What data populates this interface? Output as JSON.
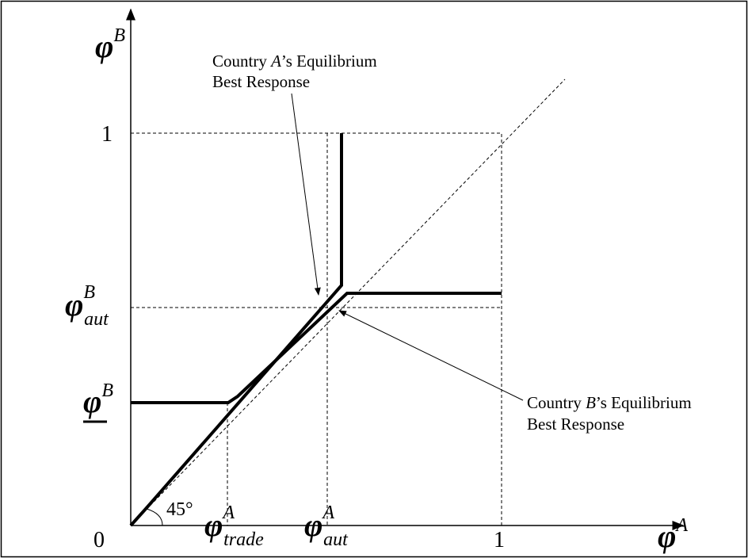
{
  "axes": {
    "y_label": {
      "symbol": "φ",
      "sup": "B"
    },
    "x_label": {
      "symbol": "φ",
      "sup": "A"
    },
    "origin": "0",
    "x_one": "1",
    "y_one": "1"
  },
  "y_marks": [
    {
      "symbol": "φ",
      "sup": "B",
      "sub": "aut"
    },
    {
      "symbol": "φ",
      "sup": "B"
    }
  ],
  "x_marks": [
    {
      "symbol": "φ",
      "sup": "A",
      "sub": "trade"
    },
    {
      "symbol": "φ",
      "sup": "A",
      "sub": "aut"
    }
  ],
  "angle_label": "45°",
  "annotations": [
    {
      "before": "Country ",
      "italic": "A",
      "after": "’s Equilibrium",
      "line2": "Best Response"
    },
    {
      "before": "Country ",
      "italic": "B",
      "after": "’s Equilibrium",
      "line2": "Best Response"
    }
  ]
}
